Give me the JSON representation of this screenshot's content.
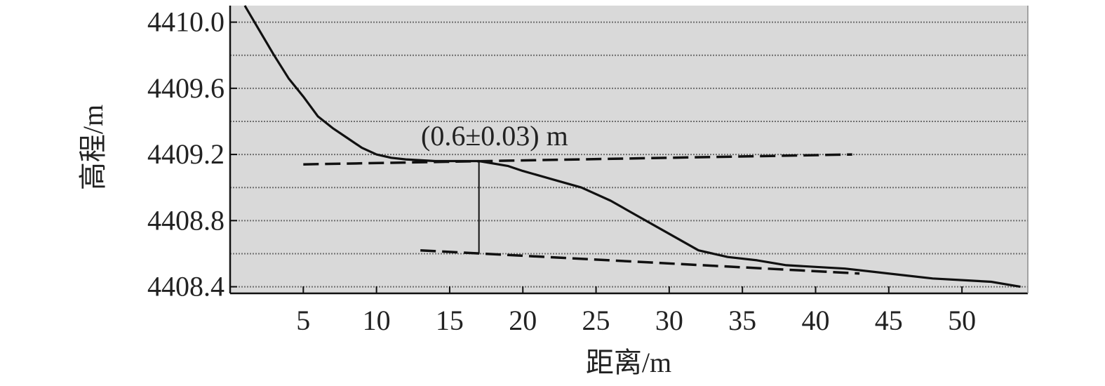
{
  "chart_data": {
    "type": "line",
    "xlabel": "距离/m",
    "ylabel": "高程/m",
    "xlim": [
      0,
      54.5
    ],
    "ylim": [
      4408.36,
      4410.1
    ],
    "xticks": [
      5,
      10,
      15,
      20,
      25,
      30,
      35,
      40,
      45,
      50
    ],
    "yticks": [
      4408.4,
      4408.8,
      4409.2,
      4409.6,
      4410.0
    ],
    "ytick_labels": [
      "4408.4",
      "4408.8",
      "4409.2",
      "4409.6",
      "4410.0"
    ],
    "grid": true,
    "plot_background": "#d9d9d9",
    "series": [
      {
        "style": "solid",
        "color": "#111111",
        "x": [
          1,
          2,
          3,
          4,
          5,
          6,
          7,
          8,
          9,
          10,
          11,
          12,
          14,
          17,
          19,
          20,
          22,
          24,
          26,
          28,
          30,
          32,
          34,
          36,
          38,
          40,
          42,
          44,
          46,
          48,
          50,
          52,
          54
        ],
        "y": [
          4410.1,
          4409.95,
          4409.8,
          4409.66,
          4409.55,
          4409.43,
          4409.36,
          4409.3,
          4409.24,
          4409.2,
          4409.18,
          4409.17,
          4409.16,
          4409.16,
          4409.13,
          4409.1,
          4409.05,
          4409.0,
          4408.92,
          4408.82,
          4408.72,
          4408.62,
          4408.58,
          4408.56,
          4408.53,
          4408.52,
          4408.51,
          4408.49,
          4408.47,
          4408.45,
          4408.44,
          4408.43,
          4408.4
        ]
      },
      {
        "style": "dashed",
        "color": "#111111",
        "x": [
          5,
          42.5
        ],
        "y": [
          4409.14,
          4409.2
        ]
      },
      {
        "style": "dashed",
        "color": "#111111",
        "x": [
          13,
          43
        ],
        "y": [
          4408.62,
          4408.48
        ]
      }
    ],
    "annotations": [
      {
        "text": "(0.6±0.03) m",
        "x_start": 17,
        "y_start": 4409.16,
        "x_end": 17,
        "y_end": 4408.6
      }
    ]
  }
}
